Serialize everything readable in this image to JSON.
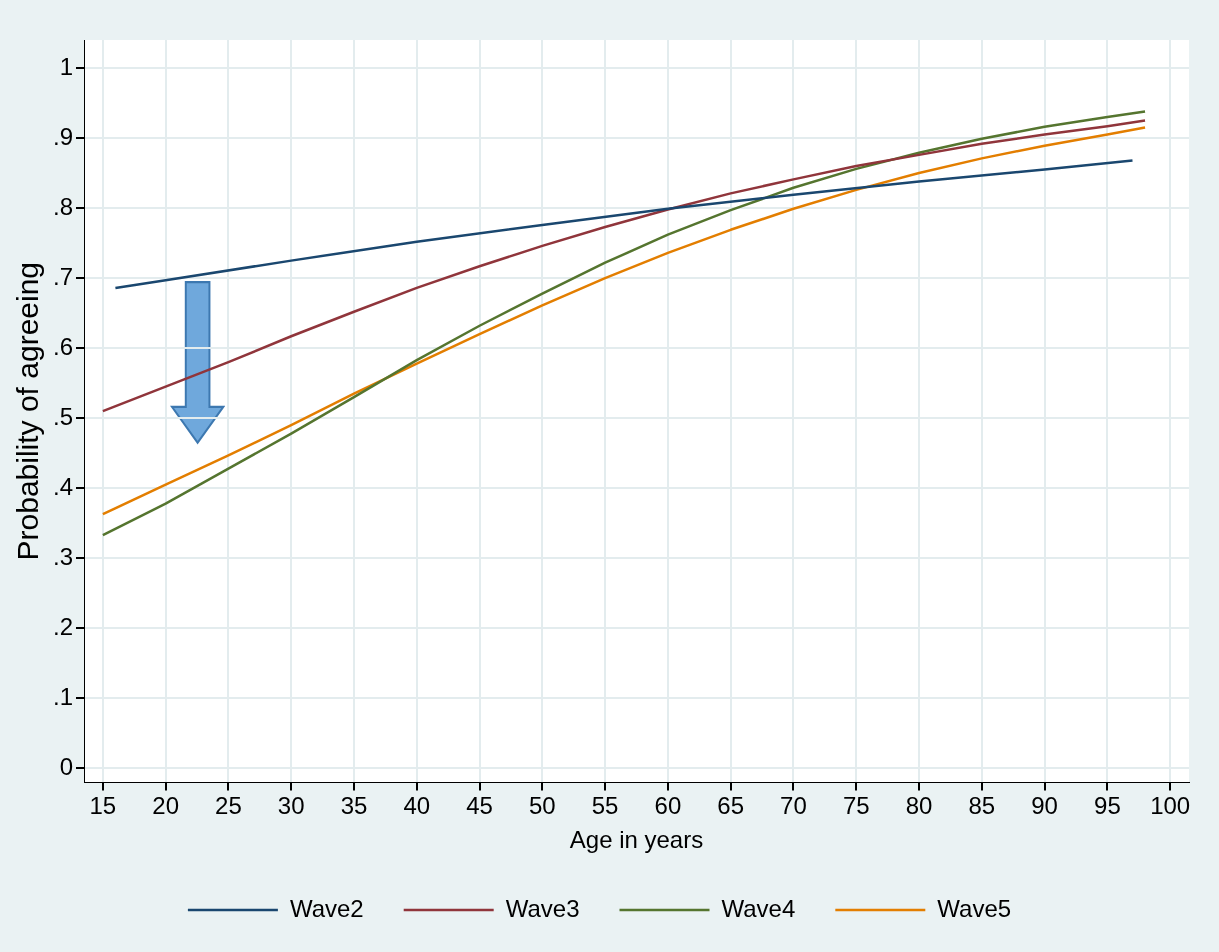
{
  "chart_data": {
    "type": "line",
    "xlabel": "Age in years",
    "ylabel": "Probability of agreeing",
    "xlim": [
      13.5,
      101.5
    ],
    "xticks": [
      15,
      20,
      25,
      30,
      35,
      40,
      45,
      50,
      55,
      60,
      65,
      70,
      75,
      80,
      85,
      90,
      95,
      100
    ],
    "ylim": [
      -0.02,
      1.04
    ],
    "yticks": [
      {
        "value": 0,
        "label": "0"
      },
      {
        "value": 0.1,
        "label": ".1"
      },
      {
        "value": 0.2,
        "label": ".2"
      },
      {
        "value": 0.3,
        "label": ".3"
      },
      {
        "value": 0.4,
        "label": ".4"
      },
      {
        "value": 0.5,
        "label": ".5"
      },
      {
        "value": 0.6,
        "label": ".6"
      },
      {
        "value": 0.7,
        "label": ".7"
      },
      {
        "value": 0.8,
        "label": ".8"
      },
      {
        "value": 0.9,
        "label": ".9"
      },
      {
        "value": 1,
        "label": "1"
      }
    ],
    "grid": true,
    "legend": "bottom",
    "marker": "none",
    "line_style": "solid",
    "series": [
      {
        "name": "Wave2",
        "color": "#1a476f",
        "x": [
          16,
          20,
          30,
          40,
          50,
          60,
          70,
          80,
          90,
          97
        ],
        "values": [
          0.686,
          0.697,
          0.725,
          0.752,
          0.776,
          0.799,
          0.819,
          0.838,
          0.855,
          0.868
        ]
      },
      {
        "name": "Wave3",
        "color": "#90353b",
        "x": [
          15,
          20,
          25,
          30,
          35,
          40,
          45,
          50,
          55,
          60,
          65,
          70,
          75,
          80,
          85,
          90,
          95,
          98
        ],
        "values": [
          0.51,
          0.545,
          0.58,
          0.617,
          0.652,
          0.686,
          0.717,
          0.746,
          0.773,
          0.798,
          0.821,
          0.841,
          0.86,
          0.876,
          0.892,
          0.905,
          0.917,
          0.925
        ]
      },
      {
        "name": "Wave4",
        "color": "#55752f",
        "x": [
          15,
          20,
          25,
          30,
          35,
          40,
          45,
          50,
          55,
          60,
          65,
          70,
          75,
          80,
          85,
          90,
          95,
          98
        ],
        "values": [
          0.333,
          0.378,
          0.428,
          0.478,
          0.53,
          0.583,
          0.632,
          0.678,
          0.722,
          0.762,
          0.797,
          0.829,
          0.856,
          0.879,
          0.899,
          0.916,
          0.93,
          0.938
        ]
      },
      {
        "name": "Wave5",
        "color": "#e37e00",
        "x": [
          15,
          20,
          25,
          30,
          35,
          40,
          45,
          50,
          55,
          60,
          65,
          70,
          75,
          80,
          85,
          90,
          95,
          98
        ],
        "values": [
          0.363,
          0.405,
          0.447,
          0.49,
          0.535,
          0.578,
          0.62,
          0.661,
          0.7,
          0.736,
          0.769,
          0.799,
          0.826,
          0.85,
          0.871,
          0.889,
          0.905,
          0.915
        ]
      }
    ]
  }
}
